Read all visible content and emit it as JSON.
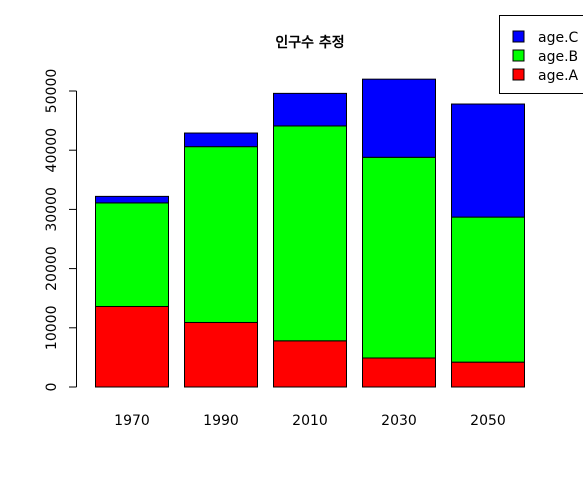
{
  "chart_data": {
    "type": "bar",
    "stacked": true,
    "title": "인구수 추정",
    "xlabel": "",
    "ylabel": "",
    "categories": [
      "1970",
      "1990",
      "2010",
      "2030",
      "2050"
    ],
    "series": [
      {
        "name": "age.A",
        "color": "#ff0000",
        "values": [
          13600,
          10900,
          7800,
          4900,
          4200
        ]
      },
      {
        "name": "age.B",
        "color": "#00ff00",
        "values": [
          17500,
          29700,
          36300,
          33900,
          24500
        ]
      },
      {
        "name": "age.C",
        "color": "#0000ff",
        "values": [
          1100,
          2300,
          5500,
          13200,
          19100
        ]
      }
    ],
    "yticks": [
      "0",
      "10000",
      "20000",
      "30000",
      "40000",
      "50000"
    ],
    "ylim": [
      0,
      50000
    ],
    "grid": false,
    "legend_position": "top-right",
    "legend": [
      "age.C",
      "age.B",
      "age.A"
    ]
  }
}
